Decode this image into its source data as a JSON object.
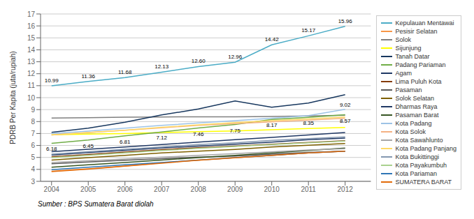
{
  "chart_data": {
    "type": "line",
    "ylabel": "PDRB Per Kapita (juta/rupiah)",
    "source": "Sumber : BPS Sumatera Barat diolah",
    "x": [
      2004,
      2005,
      2006,
      2007,
      2008,
      2009,
      2010,
      2011,
      2012
    ],
    "xlim": [
      2003.7,
      2012.7
    ],
    "xticks": [
      2004,
      2005,
      2006,
      2007,
      2008,
      2009,
      2010,
      2011,
      2012
    ],
    "ylim": [
      3,
      17
    ],
    "yticks": [
      3,
      4,
      5,
      6,
      7,
      8,
      9,
      10,
      11,
      12,
      13,
      14,
      15,
      16,
      17
    ],
    "grid": "y",
    "legend": "right",
    "series": [
      {
        "name": "Kepulauan Mentawai",
        "color": "#4bacc6",
        "values": [
          10.99,
          11.36,
          11.68,
          12.13,
          12.6,
          12.96,
          14.42,
          15.17,
          15.96
        ],
        "value_labels": [
          "10.99",
          "11.36",
          "11.68",
          "12.13",
          "12.60",
          "12.96",
          "14.42",
          "15.17",
          "15.96"
        ]
      },
      {
        "name": "Pesisir Selatan",
        "color": "#f79646",
        "values": [
          3.85,
          4.05,
          4.28,
          4.55,
          4.78,
          4.98,
          5.18,
          5.38,
          5.52
        ]
      },
      {
        "name": "Solok",
        "color": "#808080",
        "values": [
          8.3,
          8.33,
          8.36,
          8.38,
          8.4,
          8.4,
          8.43,
          8.47,
          8.52
        ]
      },
      {
        "name": "Sijunjung",
        "color": "#ffff00",
        "values": [
          6.9,
          6.95,
          7.0,
          7.08,
          7.15,
          7.22,
          7.32,
          7.42,
          7.5
        ]
      },
      {
        "name": "Tanah Datar",
        "color": "#17375e",
        "values": [
          7.1,
          7.45,
          7.95,
          8.55,
          9.05,
          9.72,
          9.2,
          9.55,
          10.25
        ]
      },
      {
        "name": "Padang Pariaman",
        "color": "#70ad47",
        "values": [
          6.18,
          6.45,
          6.81,
          7.12,
          7.46,
          7.75,
          8.17,
          8.35,
          8.57
        ],
        "value_labels": [
          "6.18",
          "6.45",
          "6.81",
          "7.12",
          "7.46",
          "7.75",
          "8.17",
          "8.35",
          "8.57"
        ]
      },
      {
        "name": "Agam",
        "color": "#1f3864",
        "values": [
          5.2,
          5.4,
          5.6,
          5.8,
          5.95,
          6.1,
          6.28,
          6.48,
          6.62
        ]
      },
      {
        "name": "Lima Puluh Kota",
        "color": "#843c0c",
        "values": [
          5.05,
          5.25,
          5.45,
          5.65,
          5.82,
          5.95,
          6.1,
          6.25,
          6.4
        ]
      },
      {
        "name": "Pasaman",
        "color": "#595959",
        "values": [
          4.48,
          4.62,
          4.76,
          4.9,
          5.02,
          5.12,
          5.28,
          5.42,
          5.52
        ]
      },
      {
        "name": "Solok Selatan",
        "color": "#7f6000",
        "values": [
          4.78,
          4.98,
          5.18,
          5.38,
          5.52,
          5.67,
          5.87,
          6.02,
          6.17
        ]
      },
      {
        "name": "Dharmas Raya",
        "color": "#203864",
        "values": [
          5.48,
          5.68,
          5.88,
          6.08,
          6.28,
          6.48,
          6.68,
          6.88,
          7.08
        ]
      },
      {
        "name": "Pasaman Barat",
        "color": "#375623",
        "values": [
          4.18,
          4.38,
          4.58,
          4.78,
          4.98,
          5.18,
          5.38,
          5.58,
          5.78
        ]
      },
      {
        "name": "Kota Padang",
        "color": "#9dc3e6",
        "values": [
          7.0,
          7.2,
          7.45,
          7.68,
          7.88,
          8.08,
          8.28,
          8.5,
          9.02
        ]
      },
      {
        "name": "Kota Solok",
        "color": "#f4b183",
        "values": [
          6.88,
          7.08,
          7.28,
          7.48,
          7.68,
          7.82,
          7.98,
          8.12,
          8.28
        ]
      },
      {
        "name": "Kota Sawahlunto",
        "color": "#a6a6a6",
        "values": [
          4.58,
          4.72,
          4.87,
          5.02,
          5.17,
          5.32,
          5.47,
          5.62,
          5.72
        ]
      },
      {
        "name": "Kota Padang Panjang",
        "color": "#ffd966",
        "values": [
          6.88,
          7.08,
          7.28,
          7.52,
          7.72,
          7.92,
          8.08,
          8.22,
          8.38
        ]
      },
      {
        "name": "Kota Bukittinggi",
        "color": "#8497b0",
        "values": [
          5.28,
          5.48,
          5.68,
          5.88,
          6.08,
          6.22,
          6.42,
          6.57,
          6.72
        ]
      },
      {
        "name": "Kota Payakumbuh",
        "color": "#a9d18e",
        "values": [
          4.98,
          5.18,
          5.38,
          5.58,
          5.75,
          5.92,
          6.07,
          6.22,
          6.37
        ]
      },
      {
        "name": "Kota Pariaman",
        "color": "#2e75b6",
        "values": [
          3.98,
          4.18,
          4.38,
          4.58,
          4.78,
          4.98,
          5.18,
          5.38,
          5.52
        ]
      },
      {
        "name": "SUMATERA BARAT",
        "color": "#e26b0a",
        "values": [
          3.82,
          4.02,
          4.27,
          4.52,
          4.77,
          4.97,
          5.17,
          5.37,
          5.52
        ]
      }
    ],
    "annotations": [
      {
        "text": "9.02",
        "x": 2012,
        "y": 9.02
      }
    ]
  }
}
